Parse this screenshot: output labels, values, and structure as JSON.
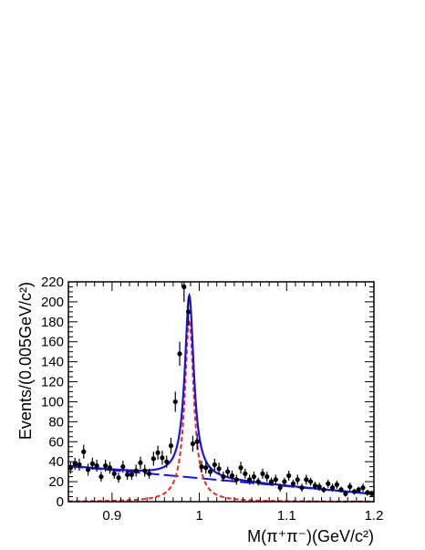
{
  "chart_data": {
    "type": "scatter",
    "xlabel": "M(π⁺π⁻)(GeV/c²)",
    "ylabel": "Events/(0.005GeV/c²)",
    "xlim": [
      0.85,
      1.2
    ],
    "ylim": [
      0,
      220
    ],
    "x_ticks": [
      0.9,
      1.0,
      1.1,
      1.2
    ],
    "x_tick_labels": [
      "0.9",
      "1",
      "1.1",
      "1.2"
    ],
    "y_ticks": [
      0,
      20,
      40,
      60,
      80,
      100,
      120,
      140,
      160,
      180,
      200,
      220
    ],
    "y_tick_labels": [
      "0",
      "20",
      "40",
      "60",
      "80",
      "100",
      "120",
      "140",
      "160",
      "180",
      "200",
      "220"
    ],
    "grid": false,
    "colors": {
      "data": "#000000",
      "total_fit": "#1515e8",
      "background": "#1515e8",
      "signal": "#ff1f1f"
    },
    "series": [
      {
        "kind": "points_with_errorbars",
        "x": [
          0.8525,
          0.8575,
          0.8625,
          0.8675,
          0.8725,
          0.8775,
          0.8825,
          0.8875,
          0.8925,
          0.8975,
          0.9025,
          0.9075,
          0.9125,
          0.9175,
          0.9225,
          0.9275,
          0.9325,
          0.9375,
          0.9425,
          0.9475,
          0.9525,
          0.9575,
          0.9625,
          0.9675,
          0.9725,
          0.9775,
          0.9825,
          0.9875,
          0.9925,
          0.9975,
          1.0025,
          1.0075,
          1.0125,
          1.0175,
          1.0225,
          1.0275,
          1.0325,
          1.0375,
          1.0425,
          1.0475,
          1.0525,
          1.0575,
          1.0625,
          1.0675,
          1.0725,
          1.0775,
          1.0825,
          1.0875,
          1.0925,
          1.0975,
          1.1025,
          1.1075,
          1.1125,
          1.1175,
          1.1225,
          1.1275,
          1.1325,
          1.1375,
          1.1425,
          1.1475,
          1.1525,
          1.1575,
          1.1625,
          1.1675,
          1.1725,
          1.1775,
          1.1825,
          1.1875,
          1.1925,
          1.1975
        ],
        "y": [
          34,
          38,
          37,
          50,
          32,
          38,
          36,
          25,
          36,
          34,
          28,
          24,
          35,
          27,
          27,
          31,
          39,
          31,
          28,
          43,
          49,
          44,
          40,
          56,
          100,
          148,
          215,
          190,
          58,
          60,
          35,
          34,
          30,
          37,
          33,
          25,
          30,
          26,
          22,
          34,
          28,
          22,
          25,
          20,
          28,
          25,
          20,
          22,
          14,
          20,
          26,
          18,
          22,
          14,
          22,
          20,
          16,
          15,
          12,
          18,
          14,
          17,
          12,
          8,
          15,
          10,
          12,
          14,
          9,
          8
        ],
        "err": [
          6,
          6,
          6,
          7,
          6,
          6,
          6,
          5,
          6,
          6,
          5,
          5,
          6,
          5,
          5,
          6,
          6,
          6,
          5,
          7,
          7,
          7,
          6,
          8,
          10,
          12,
          15,
          14,
          8,
          8,
          6,
          6,
          5,
          6,
          6,
          5,
          5,
          5,
          5,
          6,
          5,
          5,
          5,
          4,
          5,
          5,
          4,
          5,
          4,
          4,
          5,
          4,
          5,
          4,
          5,
          4,
          4,
          4,
          3,
          4,
          4,
          4,
          3,
          3,
          4,
          3,
          3,
          4,
          3,
          3
        ]
      },
      {
        "kind": "curve",
        "role": "total_fit",
        "style": "solid"
      },
      {
        "kind": "curve",
        "role": "background",
        "style": "long-dash"
      },
      {
        "kind": "curve",
        "role": "signal",
        "style": "short-dash"
      }
    ]
  }
}
